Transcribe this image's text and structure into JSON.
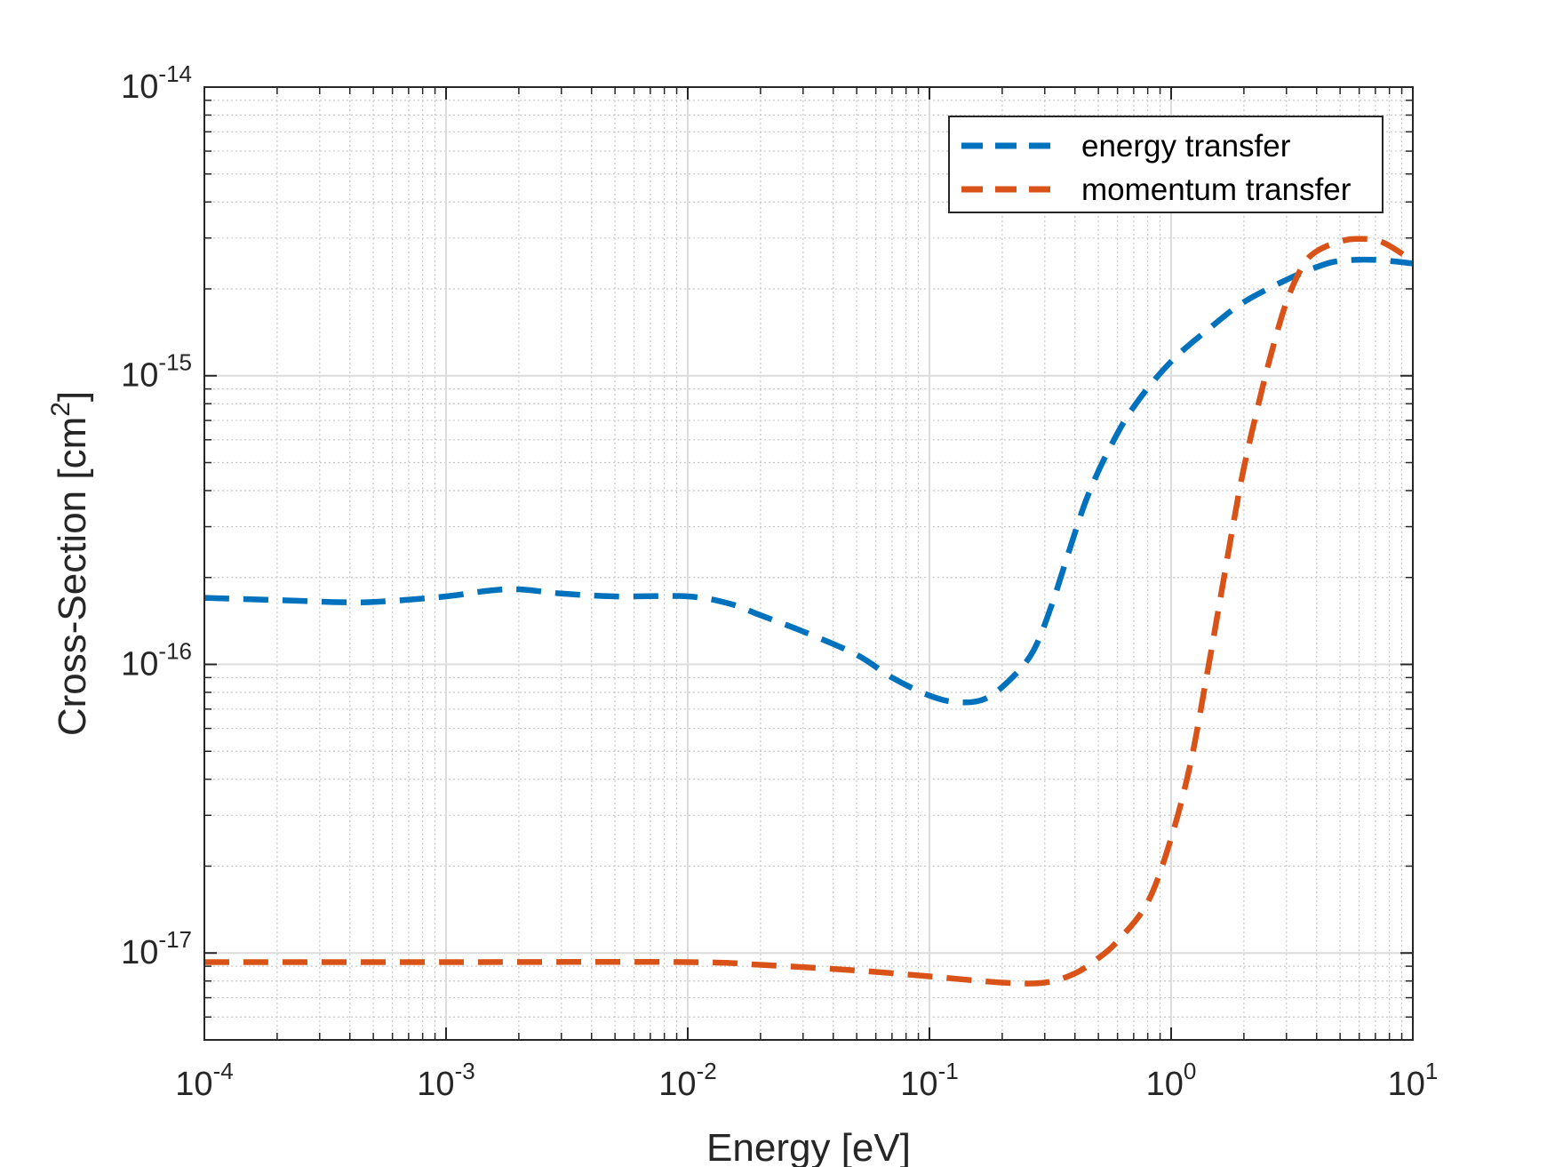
{
  "chart_data": {
    "type": "line",
    "scale": {
      "x": "log",
      "y": "log"
    },
    "xlabel": "Energy [eV]",
    "ylabel": "Cross-Section [cm",
    "ylabel_sup": "2",
    "ylabel_tail": "]",
    "xlim": [
      0.0001,
      10
    ],
    "ylim": [
      5e-18,
      1e-14
    ],
    "grid": true,
    "minor_grid": true,
    "legend_position": "top-right",
    "x_ticks": [
      {
        "base": "10",
        "exp": "-4"
      },
      {
        "base": "10",
        "exp": "-3"
      },
      {
        "base": "10",
        "exp": "-2"
      },
      {
        "base": "10",
        "exp": "-1"
      },
      {
        "base": "10",
        "exp": "0"
      },
      {
        "base": "10",
        "exp": "1"
      }
    ],
    "y_ticks": [
      {
        "base": "10",
        "exp": "-17"
      },
      {
        "base": "10",
        "exp": "-16"
      },
      {
        "base": "10",
        "exp": "-15"
      },
      {
        "base": "10",
        "exp": "-14"
      }
    ],
    "series": [
      {
        "name": "energy transfer",
        "color": "#0072BD",
        "style": "dashed",
        "points": [
          [
            0.0001,
            1.7e-16
          ],
          [
            0.0002,
            1.67e-16
          ],
          [
            0.0004,
            1.64e-16
          ],
          [
            0.0006,
            1.66e-16
          ],
          [
            0.001,
            1.72e-16
          ],
          [
            0.0015,
            1.8e-16
          ],
          [
            0.002,
            1.82e-16
          ],
          [
            0.003,
            1.76e-16
          ],
          [
            0.005,
            1.72e-16
          ],
          [
            0.01,
            1.72e-16
          ],
          [
            0.015,
            1.62e-16
          ],
          [
            0.02,
            1.48e-16
          ],
          [
            0.03,
            1.3e-16
          ],
          [
            0.05,
            1.08e-16
          ],
          [
            0.07,
            9e-17
          ],
          [
            0.1,
            7.8e-17
          ],
          [
            0.13,
            7.4e-17
          ],
          [
            0.17,
            7.6e-17
          ],
          [
            0.22,
            9e-17
          ],
          [
            0.27,
            1.12e-16
          ],
          [
            0.32,
            1.6e-16
          ],
          [
            0.38,
            2.5e-16
          ],
          [
            0.45,
            3.8e-16
          ],
          [
            0.55,
            5.5e-16
          ],
          [
            0.7,
            7.8e-16
          ],
          [
            1.0,
            1.12e-15
          ],
          [
            1.5,
            1.5e-15
          ],
          [
            2.0,
            1.8e-15
          ],
          [
            3.0,
            2.15e-15
          ],
          [
            4.0,
            2.38e-15
          ],
          [
            5.0,
            2.5e-15
          ],
          [
            7.0,
            2.52e-15
          ],
          [
            10.0,
            2.45e-15
          ]
        ]
      },
      {
        "name": "momentum transfer",
        "color": "#D95319",
        "style": "dashed",
        "points": [
          [
            0.0001,
            9.3e-18
          ],
          [
            0.001,
            9.3e-18
          ],
          [
            0.01,
            9.3e-18
          ],
          [
            0.02,
            9.1e-18
          ],
          [
            0.05,
            8.7e-18
          ],
          [
            0.1,
            8.3e-18
          ],
          [
            0.2,
            7.9e-18
          ],
          [
            0.3,
            7.9e-18
          ],
          [
            0.4,
            8.5e-18
          ],
          [
            0.5,
            9.6e-18
          ],
          [
            0.6,
            1.1e-17
          ],
          [
            0.8,
            1.5e-17
          ],
          [
            1.0,
            2.5e-17
          ],
          [
            1.2,
            4.5e-17
          ],
          [
            1.4,
            9e-17
          ],
          [
            1.6,
            1.7e-16
          ],
          [
            1.8,
            3e-16
          ],
          [
            2.0,
            4.8e-16
          ],
          [
            2.3,
            8e-16
          ],
          [
            2.6,
            1.2e-15
          ],
          [
            3.0,
            1.8e-15
          ],
          [
            3.5,
            2.4e-15
          ],
          [
            4.0,
            2.7e-15
          ],
          [
            5.0,
            2.92e-15
          ],
          [
            6.0,
            2.98e-15
          ],
          [
            7.5,
            2.9e-15
          ],
          [
            10.0,
            2.5e-15
          ]
        ]
      }
    ]
  }
}
